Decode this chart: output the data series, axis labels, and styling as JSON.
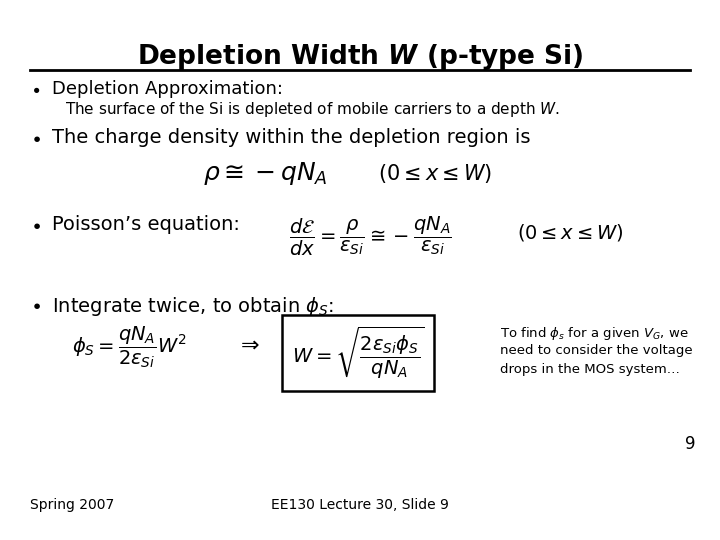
{
  "title": "Depletion Width $\\boldsymbol{W}$ (p-type Si)",
  "background_color": "#ffffff",
  "text_color": "#000000",
  "bullet1_head": "Depletion Approximation:",
  "bullet1_sub": "The surface of the Si is depleted of mobile carriers to a depth $W$.",
  "bullet2": "The charge density within the depletion region is",
  "eq1": "$\\rho \\cong -qN_A$",
  "eq1_range": "$(0 \\leq x \\leq W)$",
  "bullet3_head": "Poisson’s equation:",
  "eq2": "$\\dfrac{d\\mathcal{E}}{dx} = \\dfrac{\\rho}{\\varepsilon_{Si}} \\cong -\\dfrac{qN_A}{\\varepsilon_{Si}}$",
  "eq2_range": "$(0 \\leq x \\leq W)$",
  "bullet4": "Integrate twice, to obtain $\\phi_S$:",
  "eq3_left": "$\\phi_S = \\dfrac{qN_A}{2\\varepsilon_{Si}} W^2$",
  "eq3_arrow": "$\\Rightarrow$",
  "eq3_boxed": "$W = \\sqrt{\\dfrac{2\\varepsilon_{Si}\\phi_S}{qN_A}}$",
  "side_note_line1": "To find $\\phi_s$ for a given $V_G$, we",
  "side_note_line2": "need to consider the voltage",
  "side_note_line3": "drops in the MOS system…",
  "slide_number": "9",
  "footer_left": "Spring 2007",
  "footer_center": "EE130 Lecture 30, Slide 9"
}
